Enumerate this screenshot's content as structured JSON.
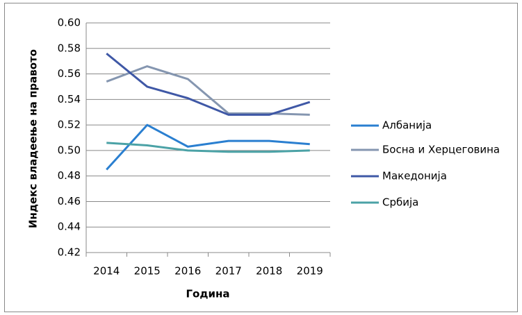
{
  "chart_data": {
    "type": "line",
    "x_label": "Година",
    "y_label": "Индекс владеење на правото",
    "categories": [
      "2014",
      "2015",
      "2016",
      "2017",
      "2018",
      "2019"
    ],
    "series": [
      {
        "name": "Албанија",
        "color": "#2a7fd0",
        "values": [
          0.485,
          0.52,
          0.503,
          0.5075,
          0.5075,
          0.505
        ]
      },
      {
        "name": "Босна и Херцеговина",
        "color": "#8596b0",
        "values": [
          0.554,
          0.566,
          0.556,
          0.529,
          0.529,
          0.528
        ]
      },
      {
        "name": "Македонија",
        "color": "#3f58a6",
        "values": [
          0.576,
          0.55,
          0.541,
          0.528,
          0.528,
          0.538
        ]
      },
      {
        "name": "Србија",
        "color": "#4ba2a6",
        "values": [
          0.506,
          0.504,
          0.5,
          0.499,
          0.499,
          0.5
        ]
      }
    ],
    "ylim": [
      0.42,
      0.6
    ],
    "yticks": [
      0.42,
      0.44,
      0.46,
      0.48,
      {
        "value": 0.5,
        "label": "0.50"
      },
      0.52,
      0.54,
      0.56,
      0.58,
      {
        "value": 0.6,
        "label": "0.60"
      }
    ],
    "grid": true,
    "legend": "right"
  }
}
